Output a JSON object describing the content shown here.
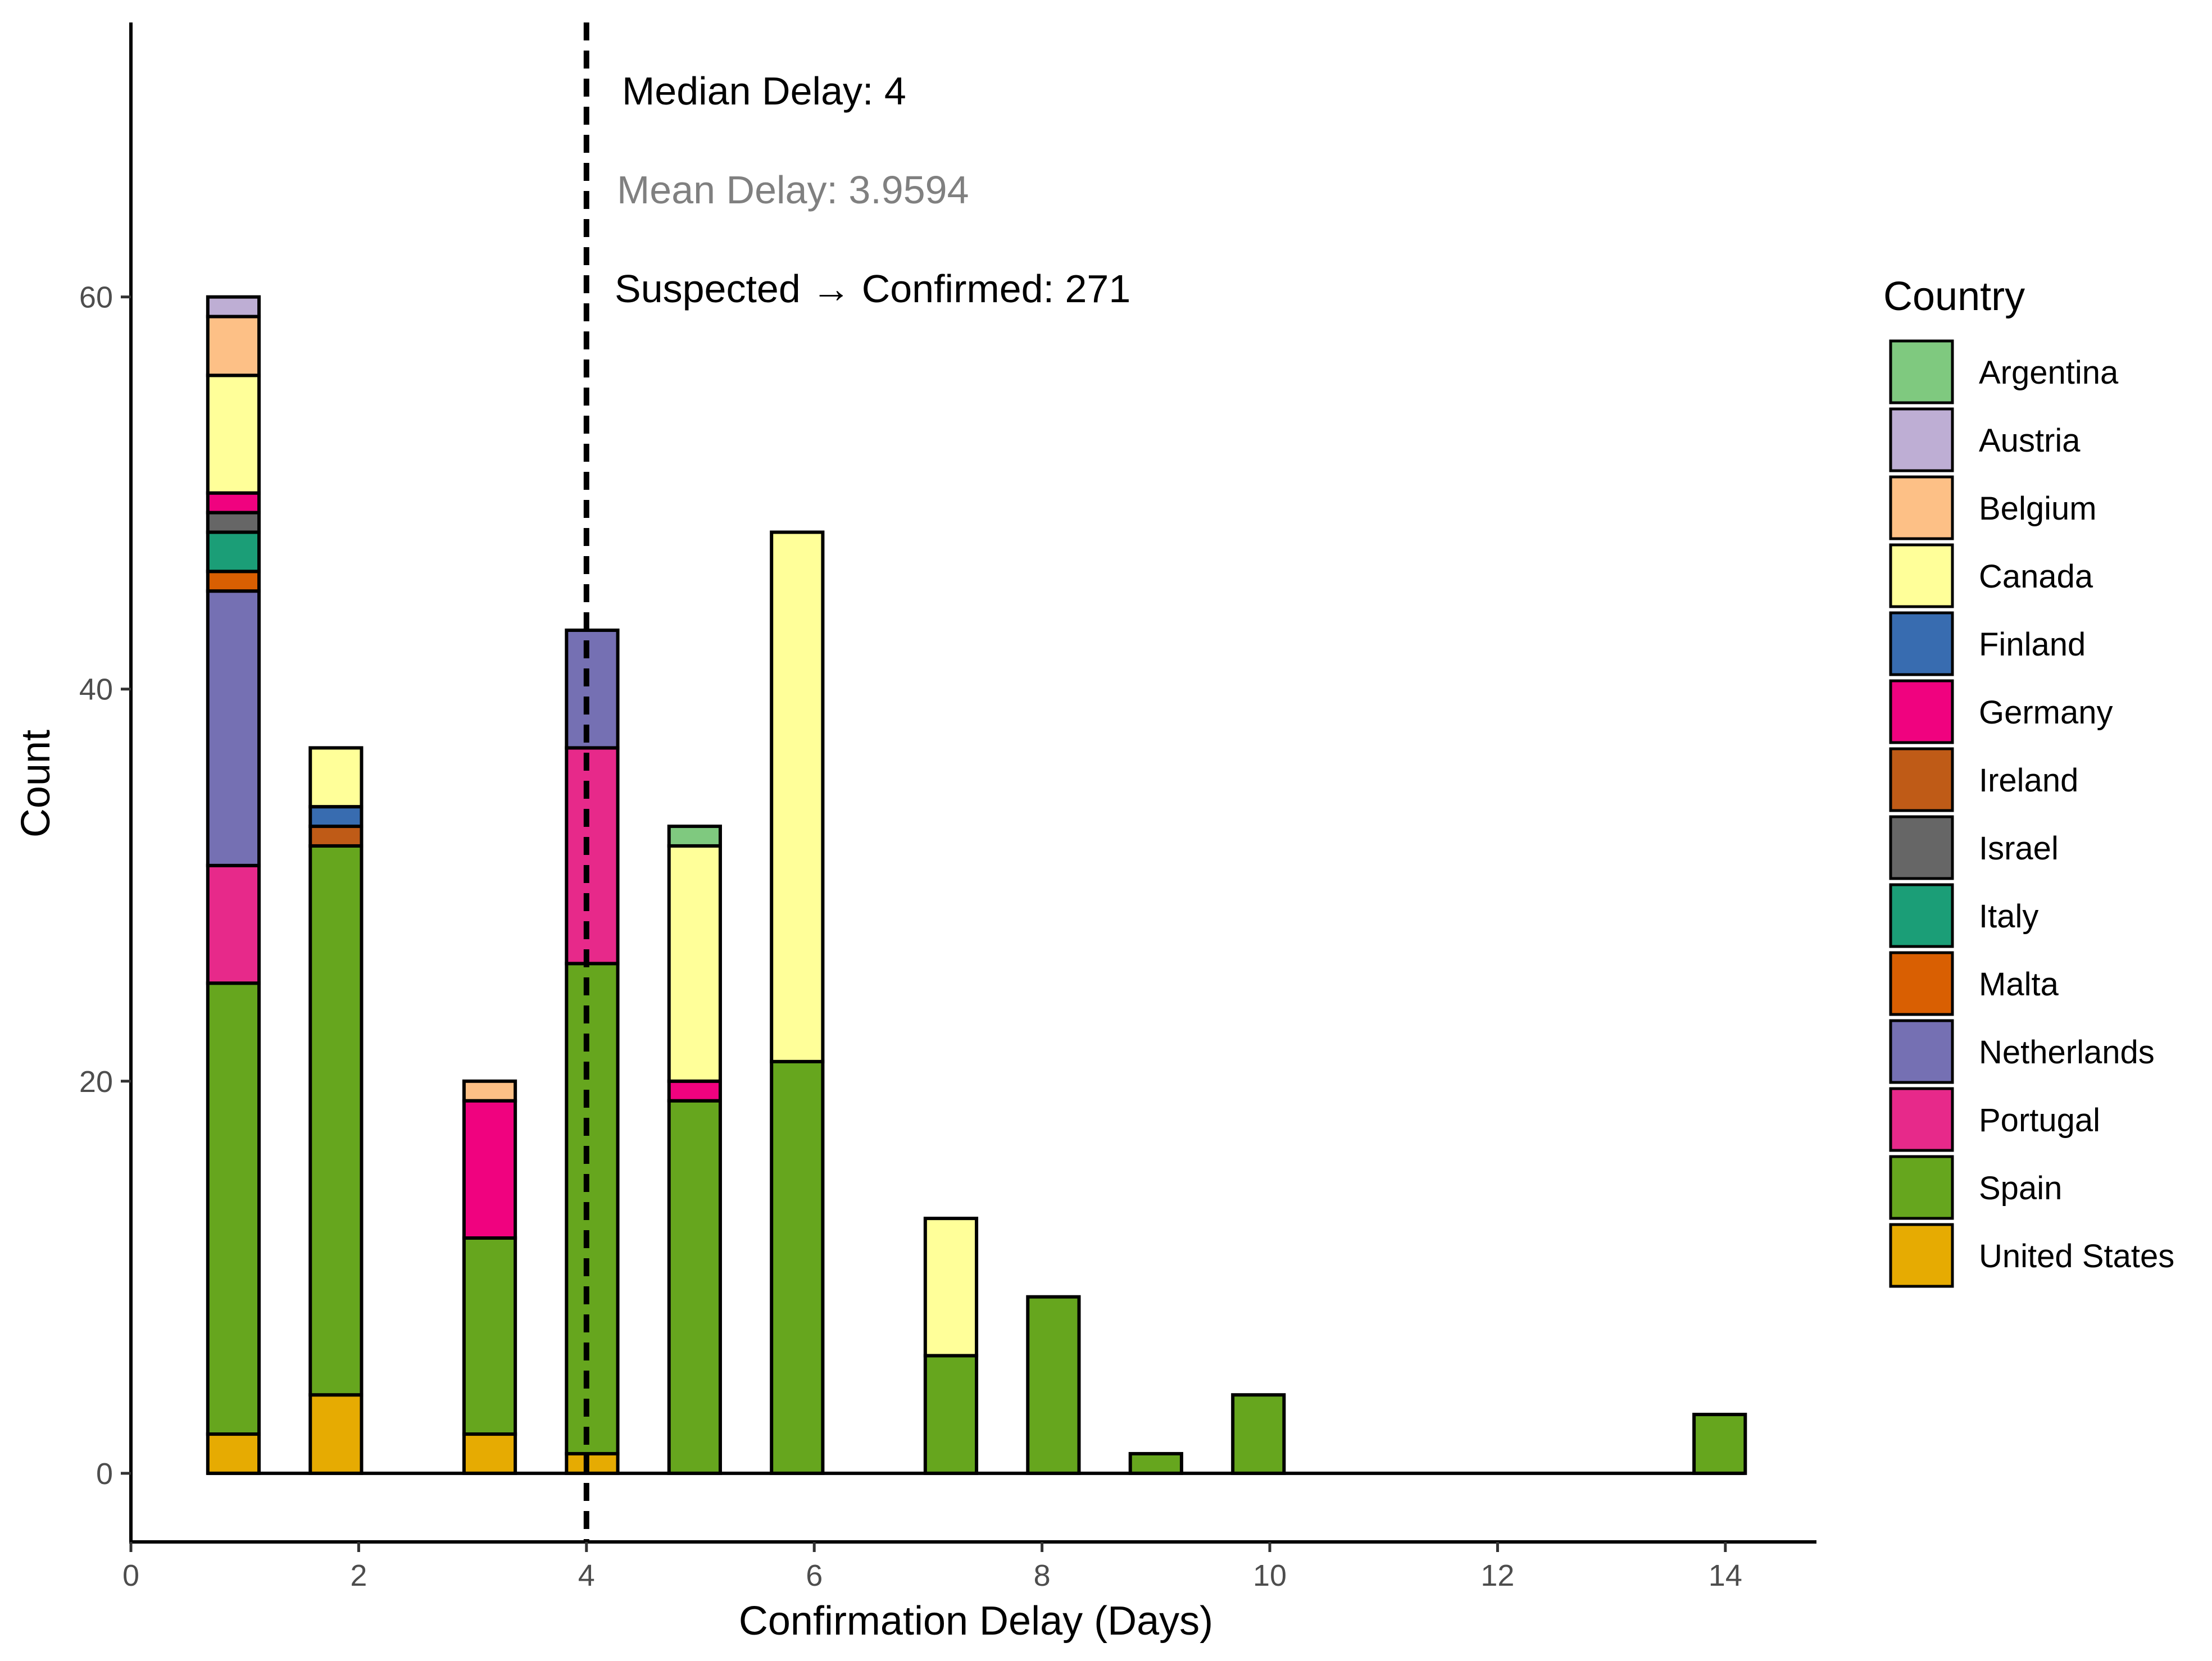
{
  "chart_data": {
    "type": "bar",
    "stacked": true,
    "xlabel": "Confirmation Delay (Days)",
    "ylabel": "Count",
    "xlim": [
      0,
      14.8
    ],
    "ylim": [
      -3.5,
      74
    ],
    "xticks": [
      0,
      2,
      4,
      6,
      8,
      10,
      12,
      14
    ],
    "yticks": [
      0,
      20,
      40,
      60
    ],
    "bar_width": 0.45,
    "grid": false,
    "legend": {
      "title": "Country",
      "position": "right",
      "entries": [
        "Argentina",
        "Austria",
        "Belgium",
        "Canada",
        "Finland",
        "Germany",
        "Ireland",
        "Israel",
        "Italy",
        "Malta",
        "Netherlands",
        "Portugal",
        "Spain",
        "United States"
      ]
    },
    "colors": {
      "Argentina": "#7fc97f",
      "Austria": "#beaed4",
      "Belgium": "#fdc086",
      "Canada": "#ffff99",
      "Finland": "#386cb0",
      "Germany": "#f0027f",
      "Ireland": "#bf5b17",
      "Israel": "#666666",
      "Italy": "#1b9e77",
      "Malta": "#d95f02",
      "Netherlands": "#7570b3",
      "Portugal": "#e7298a",
      "Spain": "#66a61e",
      "United States": "#e6ab02"
    },
    "bars": [
      {
        "x": 0.9,
        "segments": [
          [
            "United States",
            2
          ],
          [
            "Spain",
            23
          ],
          [
            "Portugal",
            6
          ],
          [
            "Netherlands",
            14
          ],
          [
            "Malta",
            1
          ],
          [
            "Italy",
            2
          ],
          [
            "Israel",
            1
          ],
          [
            "Germany",
            1
          ],
          [
            "Canada",
            6
          ],
          [
            "Belgium",
            3
          ],
          [
            "Austria",
            1
          ]
        ]
      },
      {
        "x": 1.8,
        "segments": [
          [
            "United States",
            4
          ],
          [
            "Spain",
            28
          ],
          [
            "Ireland",
            1
          ],
          [
            "Finland",
            1
          ],
          [
            "Canada",
            3
          ]
        ]
      },
      {
        "x": 3.15,
        "segments": [
          [
            "United States",
            2
          ],
          [
            "Spain",
            10
          ],
          [
            "Germany",
            7
          ],
          [
            "Belgium",
            1
          ]
        ]
      },
      {
        "x": 4.05,
        "segments": [
          [
            "United States",
            1
          ],
          [
            "Spain",
            25
          ],
          [
            "Portugal",
            11
          ],
          [
            "Netherlands",
            6
          ]
        ]
      },
      {
        "x": 4.95,
        "segments": [
          [
            "Spain",
            19
          ],
          [
            "Germany",
            1
          ],
          [
            "Canada",
            12
          ],
          [
            "Argentina",
            1
          ]
        ]
      },
      {
        "x": 5.85,
        "segments": [
          [
            "Spain",
            21
          ],
          [
            "Canada",
            27
          ]
        ]
      },
      {
        "x": 7.2,
        "segments": [
          [
            "Spain",
            6
          ],
          [
            "Canada",
            7
          ]
        ]
      },
      {
        "x": 8.1,
        "segments": [
          [
            "Spain",
            9
          ]
        ]
      },
      {
        "x": 9.0,
        "segments": [
          [
            "Spain",
            1
          ]
        ]
      },
      {
        "x": 9.9,
        "segments": [
          [
            "Spain",
            4
          ]
        ]
      },
      {
        "x": 13.95,
        "segments": [
          [
            "Spain",
            3
          ]
        ]
      }
    ],
    "baseline_range": [
      0.67,
      14.17
    ],
    "median_line_x": 4.0,
    "annotations": [
      {
        "text": "Median Delay: 4",
        "color": "#000000"
      },
      {
        "text": "Mean Delay: 3.9594",
        "color": "#808080"
      },
      {
        "text": "Suspected → Confirmed: 271",
        "color": "#000000"
      }
    ]
  }
}
